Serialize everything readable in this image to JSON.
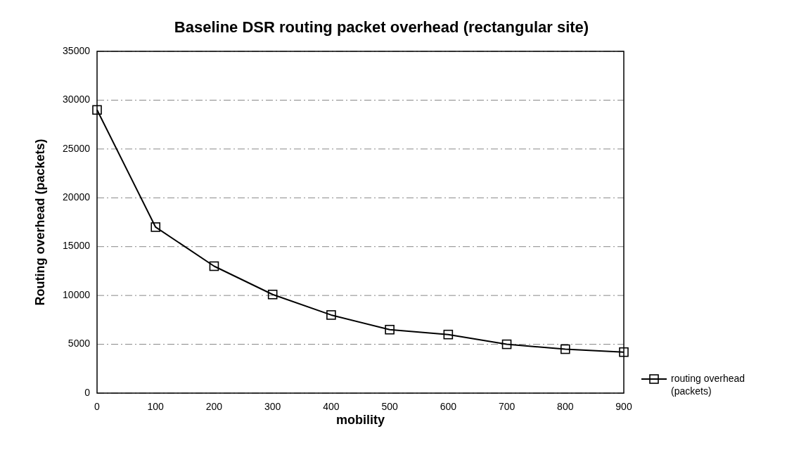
{
  "chart_data": {
    "type": "line",
    "title": "Baseline DSR routing packet overhead (rectangular site)",
    "xlabel": "mobility",
    "ylabel": "Routing overhead (packets)",
    "categories": [
      "0",
      "100",
      "200",
      "300",
      "400",
      "500",
      "600",
      "700",
      "800",
      "900"
    ],
    "series": [
      {
        "name": "routing overhead (packets)",
        "color": "#000000",
        "values": [
          29000,
          17000,
          13000,
          10100,
          8000,
          6500,
          6000,
          5000,
          4500,
          4200
        ]
      }
    ],
    "ylim": [
      0,
      35000
    ],
    "yticks": [
      0,
      5000,
      10000,
      15000,
      20000,
      25000,
      30000,
      35000
    ],
    "grid": "y",
    "legend": "bottom right",
    "marker": "square",
    "line_style": "solid"
  }
}
